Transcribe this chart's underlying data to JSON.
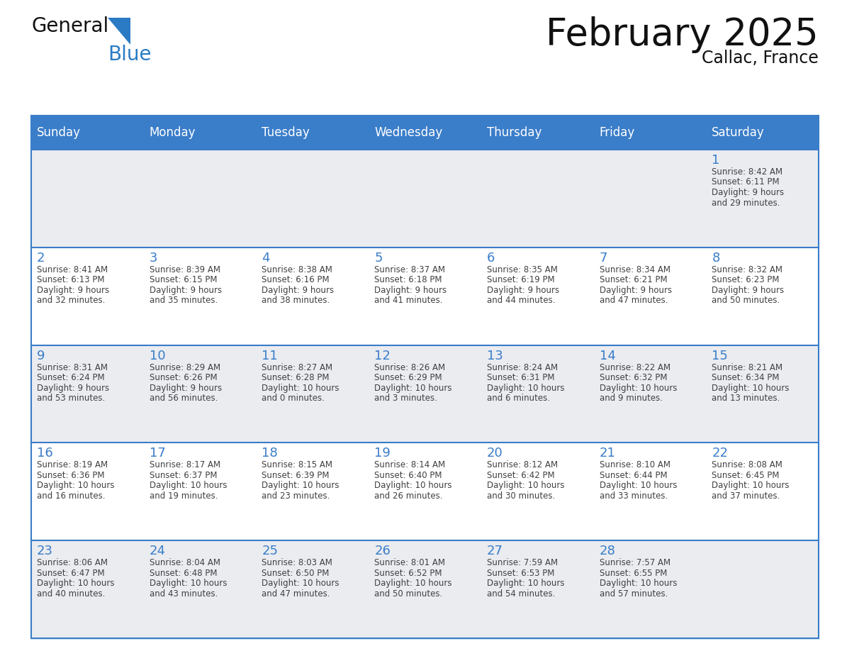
{
  "title": "February 2025",
  "subtitle": "Callac, France",
  "days_of_week": [
    "Sunday",
    "Monday",
    "Tuesday",
    "Wednesday",
    "Thursday",
    "Friday",
    "Saturday"
  ],
  "header_bg": "#3A7DC9",
  "header_text_color": "#FFFFFF",
  "cell_bg_odd": "#EAECF0",
  "cell_bg_even": "#FFFFFF",
  "cell_border_top_color": "#3A7DC9",
  "day_number_color": "#3A7DC9",
  "text_color": "#404040",
  "title_color": "#111111",
  "logo_black": "#111111",
  "logo_blue": "#2B7BC4",
  "triangle_color": "#2B7BC4",
  "weeks": [
    [
      {
        "day": null,
        "info": null
      },
      {
        "day": null,
        "info": null
      },
      {
        "day": null,
        "info": null
      },
      {
        "day": null,
        "info": null
      },
      {
        "day": null,
        "info": null
      },
      {
        "day": null,
        "info": null
      },
      {
        "day": 1,
        "info": "Sunrise: 8:42 AM\nSunset: 6:11 PM\nDaylight: 9 hours\nand 29 minutes."
      }
    ],
    [
      {
        "day": 2,
        "info": "Sunrise: 8:41 AM\nSunset: 6:13 PM\nDaylight: 9 hours\nand 32 minutes."
      },
      {
        "day": 3,
        "info": "Sunrise: 8:39 AM\nSunset: 6:15 PM\nDaylight: 9 hours\nand 35 minutes."
      },
      {
        "day": 4,
        "info": "Sunrise: 8:38 AM\nSunset: 6:16 PM\nDaylight: 9 hours\nand 38 minutes."
      },
      {
        "day": 5,
        "info": "Sunrise: 8:37 AM\nSunset: 6:18 PM\nDaylight: 9 hours\nand 41 minutes."
      },
      {
        "day": 6,
        "info": "Sunrise: 8:35 AM\nSunset: 6:19 PM\nDaylight: 9 hours\nand 44 minutes."
      },
      {
        "day": 7,
        "info": "Sunrise: 8:34 AM\nSunset: 6:21 PM\nDaylight: 9 hours\nand 47 minutes."
      },
      {
        "day": 8,
        "info": "Sunrise: 8:32 AM\nSunset: 6:23 PM\nDaylight: 9 hours\nand 50 minutes."
      }
    ],
    [
      {
        "day": 9,
        "info": "Sunrise: 8:31 AM\nSunset: 6:24 PM\nDaylight: 9 hours\nand 53 minutes."
      },
      {
        "day": 10,
        "info": "Sunrise: 8:29 AM\nSunset: 6:26 PM\nDaylight: 9 hours\nand 56 minutes."
      },
      {
        "day": 11,
        "info": "Sunrise: 8:27 AM\nSunset: 6:28 PM\nDaylight: 10 hours\nand 0 minutes."
      },
      {
        "day": 12,
        "info": "Sunrise: 8:26 AM\nSunset: 6:29 PM\nDaylight: 10 hours\nand 3 minutes."
      },
      {
        "day": 13,
        "info": "Sunrise: 8:24 AM\nSunset: 6:31 PM\nDaylight: 10 hours\nand 6 minutes."
      },
      {
        "day": 14,
        "info": "Sunrise: 8:22 AM\nSunset: 6:32 PM\nDaylight: 10 hours\nand 9 minutes."
      },
      {
        "day": 15,
        "info": "Sunrise: 8:21 AM\nSunset: 6:34 PM\nDaylight: 10 hours\nand 13 minutes."
      }
    ],
    [
      {
        "day": 16,
        "info": "Sunrise: 8:19 AM\nSunset: 6:36 PM\nDaylight: 10 hours\nand 16 minutes."
      },
      {
        "day": 17,
        "info": "Sunrise: 8:17 AM\nSunset: 6:37 PM\nDaylight: 10 hours\nand 19 minutes."
      },
      {
        "day": 18,
        "info": "Sunrise: 8:15 AM\nSunset: 6:39 PM\nDaylight: 10 hours\nand 23 minutes."
      },
      {
        "day": 19,
        "info": "Sunrise: 8:14 AM\nSunset: 6:40 PM\nDaylight: 10 hours\nand 26 minutes."
      },
      {
        "day": 20,
        "info": "Sunrise: 8:12 AM\nSunset: 6:42 PM\nDaylight: 10 hours\nand 30 minutes."
      },
      {
        "day": 21,
        "info": "Sunrise: 8:10 AM\nSunset: 6:44 PM\nDaylight: 10 hours\nand 33 minutes."
      },
      {
        "day": 22,
        "info": "Sunrise: 8:08 AM\nSunset: 6:45 PM\nDaylight: 10 hours\nand 37 minutes."
      }
    ],
    [
      {
        "day": 23,
        "info": "Sunrise: 8:06 AM\nSunset: 6:47 PM\nDaylight: 10 hours\nand 40 minutes."
      },
      {
        "day": 24,
        "info": "Sunrise: 8:04 AM\nSunset: 6:48 PM\nDaylight: 10 hours\nand 43 minutes."
      },
      {
        "day": 25,
        "info": "Sunrise: 8:03 AM\nSunset: 6:50 PM\nDaylight: 10 hours\nand 47 minutes."
      },
      {
        "day": 26,
        "info": "Sunrise: 8:01 AM\nSunset: 6:52 PM\nDaylight: 10 hours\nand 50 minutes."
      },
      {
        "day": 27,
        "info": "Sunrise: 7:59 AM\nSunset: 6:53 PM\nDaylight: 10 hours\nand 54 minutes."
      },
      {
        "day": 28,
        "info": "Sunrise: 7:57 AM\nSunset: 6:55 PM\nDaylight: 10 hours\nand 57 minutes."
      },
      {
        "day": null,
        "info": null
      }
    ]
  ]
}
